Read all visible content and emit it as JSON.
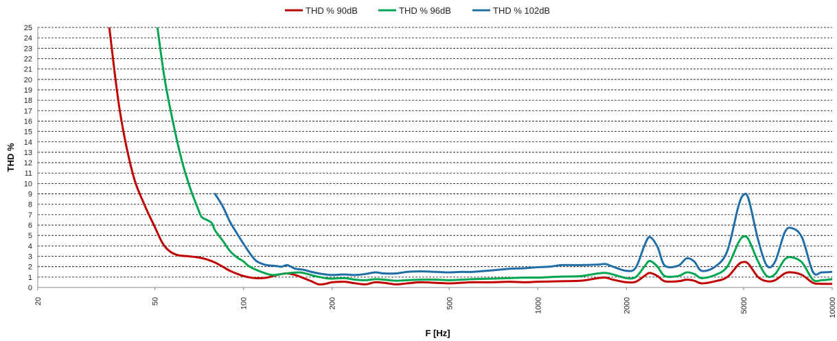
{
  "chart_data": {
    "type": "line",
    "title": "",
    "xlabel": "F [Hz]",
    "ylabel": "THD %",
    "x_scale": "log",
    "xlim": [
      20,
      10000
    ],
    "ylim": [
      0,
      25
    ],
    "x_ticks": [
      20,
      50,
      100,
      200,
      500,
      1000,
      2000,
      5000,
      10000
    ],
    "y_ticks": [
      0,
      1,
      2,
      3,
      4,
      5,
      6,
      7,
      8,
      9,
      10,
      11,
      12,
      13,
      14,
      15,
      16,
      17,
      18,
      19,
      20,
      21,
      22,
      23,
      24,
      25
    ],
    "grid": "horizontal-dashed",
    "legend_position": "top-center",
    "series": [
      {
        "name": "THD % 90dB",
        "color": "#c00000",
        "points": [
          [
            35,
            25
          ],
          [
            38,
            17
          ],
          [
            42,
            11
          ],
          [
            46,
            8
          ],
          [
            50,
            5.8
          ],
          [
            53,
            4.3
          ],
          [
            56,
            3.5
          ],
          [
            60,
            3.1
          ],
          [
            65,
            3.0
          ],
          [
            70,
            2.9
          ],
          [
            75,
            2.7
          ],
          [
            80,
            2.4
          ],
          [
            85,
            2.0
          ],
          [
            90,
            1.6
          ],
          [
            100,
            1.1
          ],
          [
            110,
            0.9
          ],
          [
            120,
            0.95
          ],
          [
            130,
            1.2
          ],
          [
            140,
            1.35
          ],
          [
            150,
            1.2
          ],
          [
            160,
            0.9
          ],
          [
            170,
            0.6
          ],
          [
            180,
            0.3
          ],
          [
            190,
            0.35
          ],
          [
            200,
            0.5
          ],
          [
            220,
            0.55
          ],
          [
            240,
            0.4
          ],
          [
            260,
            0.3
          ],
          [
            280,
            0.5
          ],
          [
            300,
            0.45
          ],
          [
            330,
            0.3
          ],
          [
            360,
            0.4
          ],
          [
            400,
            0.5
          ],
          [
            450,
            0.45
          ],
          [
            500,
            0.4
          ],
          [
            550,
            0.45
          ],
          [
            600,
            0.5
          ],
          [
            700,
            0.5
          ],
          [
            800,
            0.55
          ],
          [
            900,
            0.5
          ],
          [
            1000,
            0.55
          ],
          [
            1200,
            0.6
          ],
          [
            1400,
            0.65
          ],
          [
            1600,
            0.9
          ],
          [
            1700,
            0.95
          ],
          [
            1800,
            0.75
          ],
          [
            2000,
            0.5
          ],
          [
            2150,
            0.55
          ],
          [
            2300,
            1.1
          ],
          [
            2400,
            1.4
          ],
          [
            2550,
            1.1
          ],
          [
            2700,
            0.6
          ],
          [
            3000,
            0.6
          ],
          [
            3200,
            0.75
          ],
          [
            3400,
            0.65
          ],
          [
            3600,
            0.4
          ],
          [
            4000,
            0.6
          ],
          [
            4400,
            1.0
          ],
          [
            4800,
            2.2
          ],
          [
            5000,
            2.45
          ],
          [
            5200,
            2.25
          ],
          [
            5600,
            1.0
          ],
          [
            6000,
            0.6
          ],
          [
            6400,
            0.7
          ],
          [
            6900,
            1.35
          ],
          [
            7300,
            1.45
          ],
          [
            7900,
            1.2
          ],
          [
            8600,
            0.45
          ],
          [
            9200,
            0.35
          ],
          [
            10000,
            0.35
          ]
        ]
      },
      {
        "name": "THD % 96dB",
        "color": "#00a550",
        "points": [
          [
            51,
            25
          ],
          [
            54,
            20
          ],
          [
            58,
            15.5
          ],
          [
            62,
            12
          ],
          [
            66,
            9.5
          ],
          [
            70,
            7.6
          ],
          [
            72,
            6.8
          ],
          [
            75,
            6.5
          ],
          [
            78,
            6.2
          ],
          [
            80,
            5.5
          ],
          [
            85,
            4.5
          ],
          [
            90,
            3.5
          ],
          [
            95,
            2.9
          ],
          [
            100,
            2.5
          ],
          [
            105,
            2.0
          ],
          [
            115,
            1.5
          ],
          [
            125,
            1.2
          ],
          [
            135,
            1.3
          ],
          [
            145,
            1.4
          ],
          [
            155,
            1.45
          ],
          [
            165,
            1.3
          ],
          [
            175,
            1.1
          ],
          [
            190,
            0.9
          ],
          [
            200,
            0.85
          ],
          [
            220,
            0.9
          ],
          [
            240,
            0.75
          ],
          [
            260,
            0.7
          ],
          [
            280,
            0.8
          ],
          [
            300,
            0.75
          ],
          [
            330,
            0.65
          ],
          [
            360,
            0.7
          ],
          [
            400,
            0.75
          ],
          [
            450,
            0.75
          ],
          [
            500,
            0.7
          ],
          [
            550,
            0.75
          ],
          [
            600,
            0.8
          ],
          [
            700,
            0.85
          ],
          [
            800,
            0.9
          ],
          [
            900,
            0.95
          ],
          [
            1000,
            0.95
          ],
          [
            1100,
            1.0
          ],
          [
            1200,
            1.05
          ],
          [
            1400,
            1.1
          ],
          [
            1600,
            1.35
          ],
          [
            1700,
            1.4
          ],
          [
            1800,
            1.25
          ],
          [
            2000,
            0.9
          ],
          [
            2150,
            1.0
          ],
          [
            2300,
            2.0
          ],
          [
            2400,
            2.55
          ],
          [
            2550,
            2.0
          ],
          [
            2700,
            1.1
          ],
          [
            3000,
            1.1
          ],
          [
            3200,
            1.45
          ],
          [
            3400,
            1.3
          ],
          [
            3600,
            0.9
          ],
          [
            4000,
            1.2
          ],
          [
            4400,
            2.0
          ],
          [
            4800,
            4.3
          ],
          [
            5000,
            4.9
          ],
          [
            5200,
            4.6
          ],
          [
            5600,
            2.5
          ],
          [
            6000,
            1.1
          ],
          [
            6400,
            1.3
          ],
          [
            6900,
            2.7
          ],
          [
            7300,
            2.9
          ],
          [
            7900,
            2.4
          ],
          [
            8600,
            0.75
          ],
          [
            9200,
            0.7
          ],
          [
            10000,
            0.8
          ]
        ]
      },
      {
        "name": "THD % 102dB",
        "color": "#1f6ea8",
        "points": [
          [
            80,
            9
          ],
          [
            85,
            7.8
          ],
          [
            90,
            6.3
          ],
          [
            95,
            5.2
          ],
          [
            100,
            4.2
          ],
          [
            105,
            3.3
          ],
          [
            110,
            2.6
          ],
          [
            115,
            2.3
          ],
          [
            120,
            2.15
          ],
          [
            125,
            2.1
          ],
          [
            130,
            2.05
          ],
          [
            135,
            2.0
          ],
          [
            140,
            2.15
          ],
          [
            145,
            2.0
          ],
          [
            150,
            1.8
          ],
          [
            160,
            1.7
          ],
          [
            170,
            1.5
          ],
          [
            180,
            1.35
          ],
          [
            190,
            1.25
          ],
          [
            200,
            1.2
          ],
          [
            220,
            1.25
          ],
          [
            240,
            1.2
          ],
          [
            260,
            1.3
          ],
          [
            280,
            1.45
          ],
          [
            300,
            1.35
          ],
          [
            330,
            1.35
          ],
          [
            360,
            1.5
          ],
          [
            400,
            1.55
          ],
          [
            450,
            1.5
          ],
          [
            500,
            1.45
          ],
          [
            550,
            1.5
          ],
          [
            600,
            1.5
          ],
          [
            700,
            1.65
          ],
          [
            800,
            1.8
          ],
          [
            900,
            1.85
          ],
          [
            1000,
            1.95
          ],
          [
            1100,
            2.0
          ],
          [
            1200,
            2.15
          ],
          [
            1400,
            2.15
          ],
          [
            1600,
            2.2
          ],
          [
            1700,
            2.25
          ],
          [
            1800,
            2.0
          ],
          [
            2000,
            1.6
          ],
          [
            2150,
            1.9
          ],
          [
            2300,
            4.0
          ],
          [
            2400,
            4.85
          ],
          [
            2550,
            3.9
          ],
          [
            2700,
            2.1
          ],
          [
            3000,
            2.1
          ],
          [
            3200,
            2.8
          ],
          [
            3400,
            2.5
          ],
          [
            3600,
            1.6
          ],
          [
            4000,
            2.0
          ],
          [
            4400,
            3.5
          ],
          [
            4800,
            7.8
          ],
          [
            5000,
            8.9
          ],
          [
            5200,
            8.5
          ],
          [
            5600,
            4.6
          ],
          [
            6000,
            2.1
          ],
          [
            6400,
            2.5
          ],
          [
            6900,
            5.3
          ],
          [
            7300,
            5.7
          ],
          [
            7900,
            4.8
          ],
          [
            8600,
            1.5
          ],
          [
            9200,
            1.45
          ],
          [
            10000,
            1.5
          ]
        ]
      }
    ]
  }
}
